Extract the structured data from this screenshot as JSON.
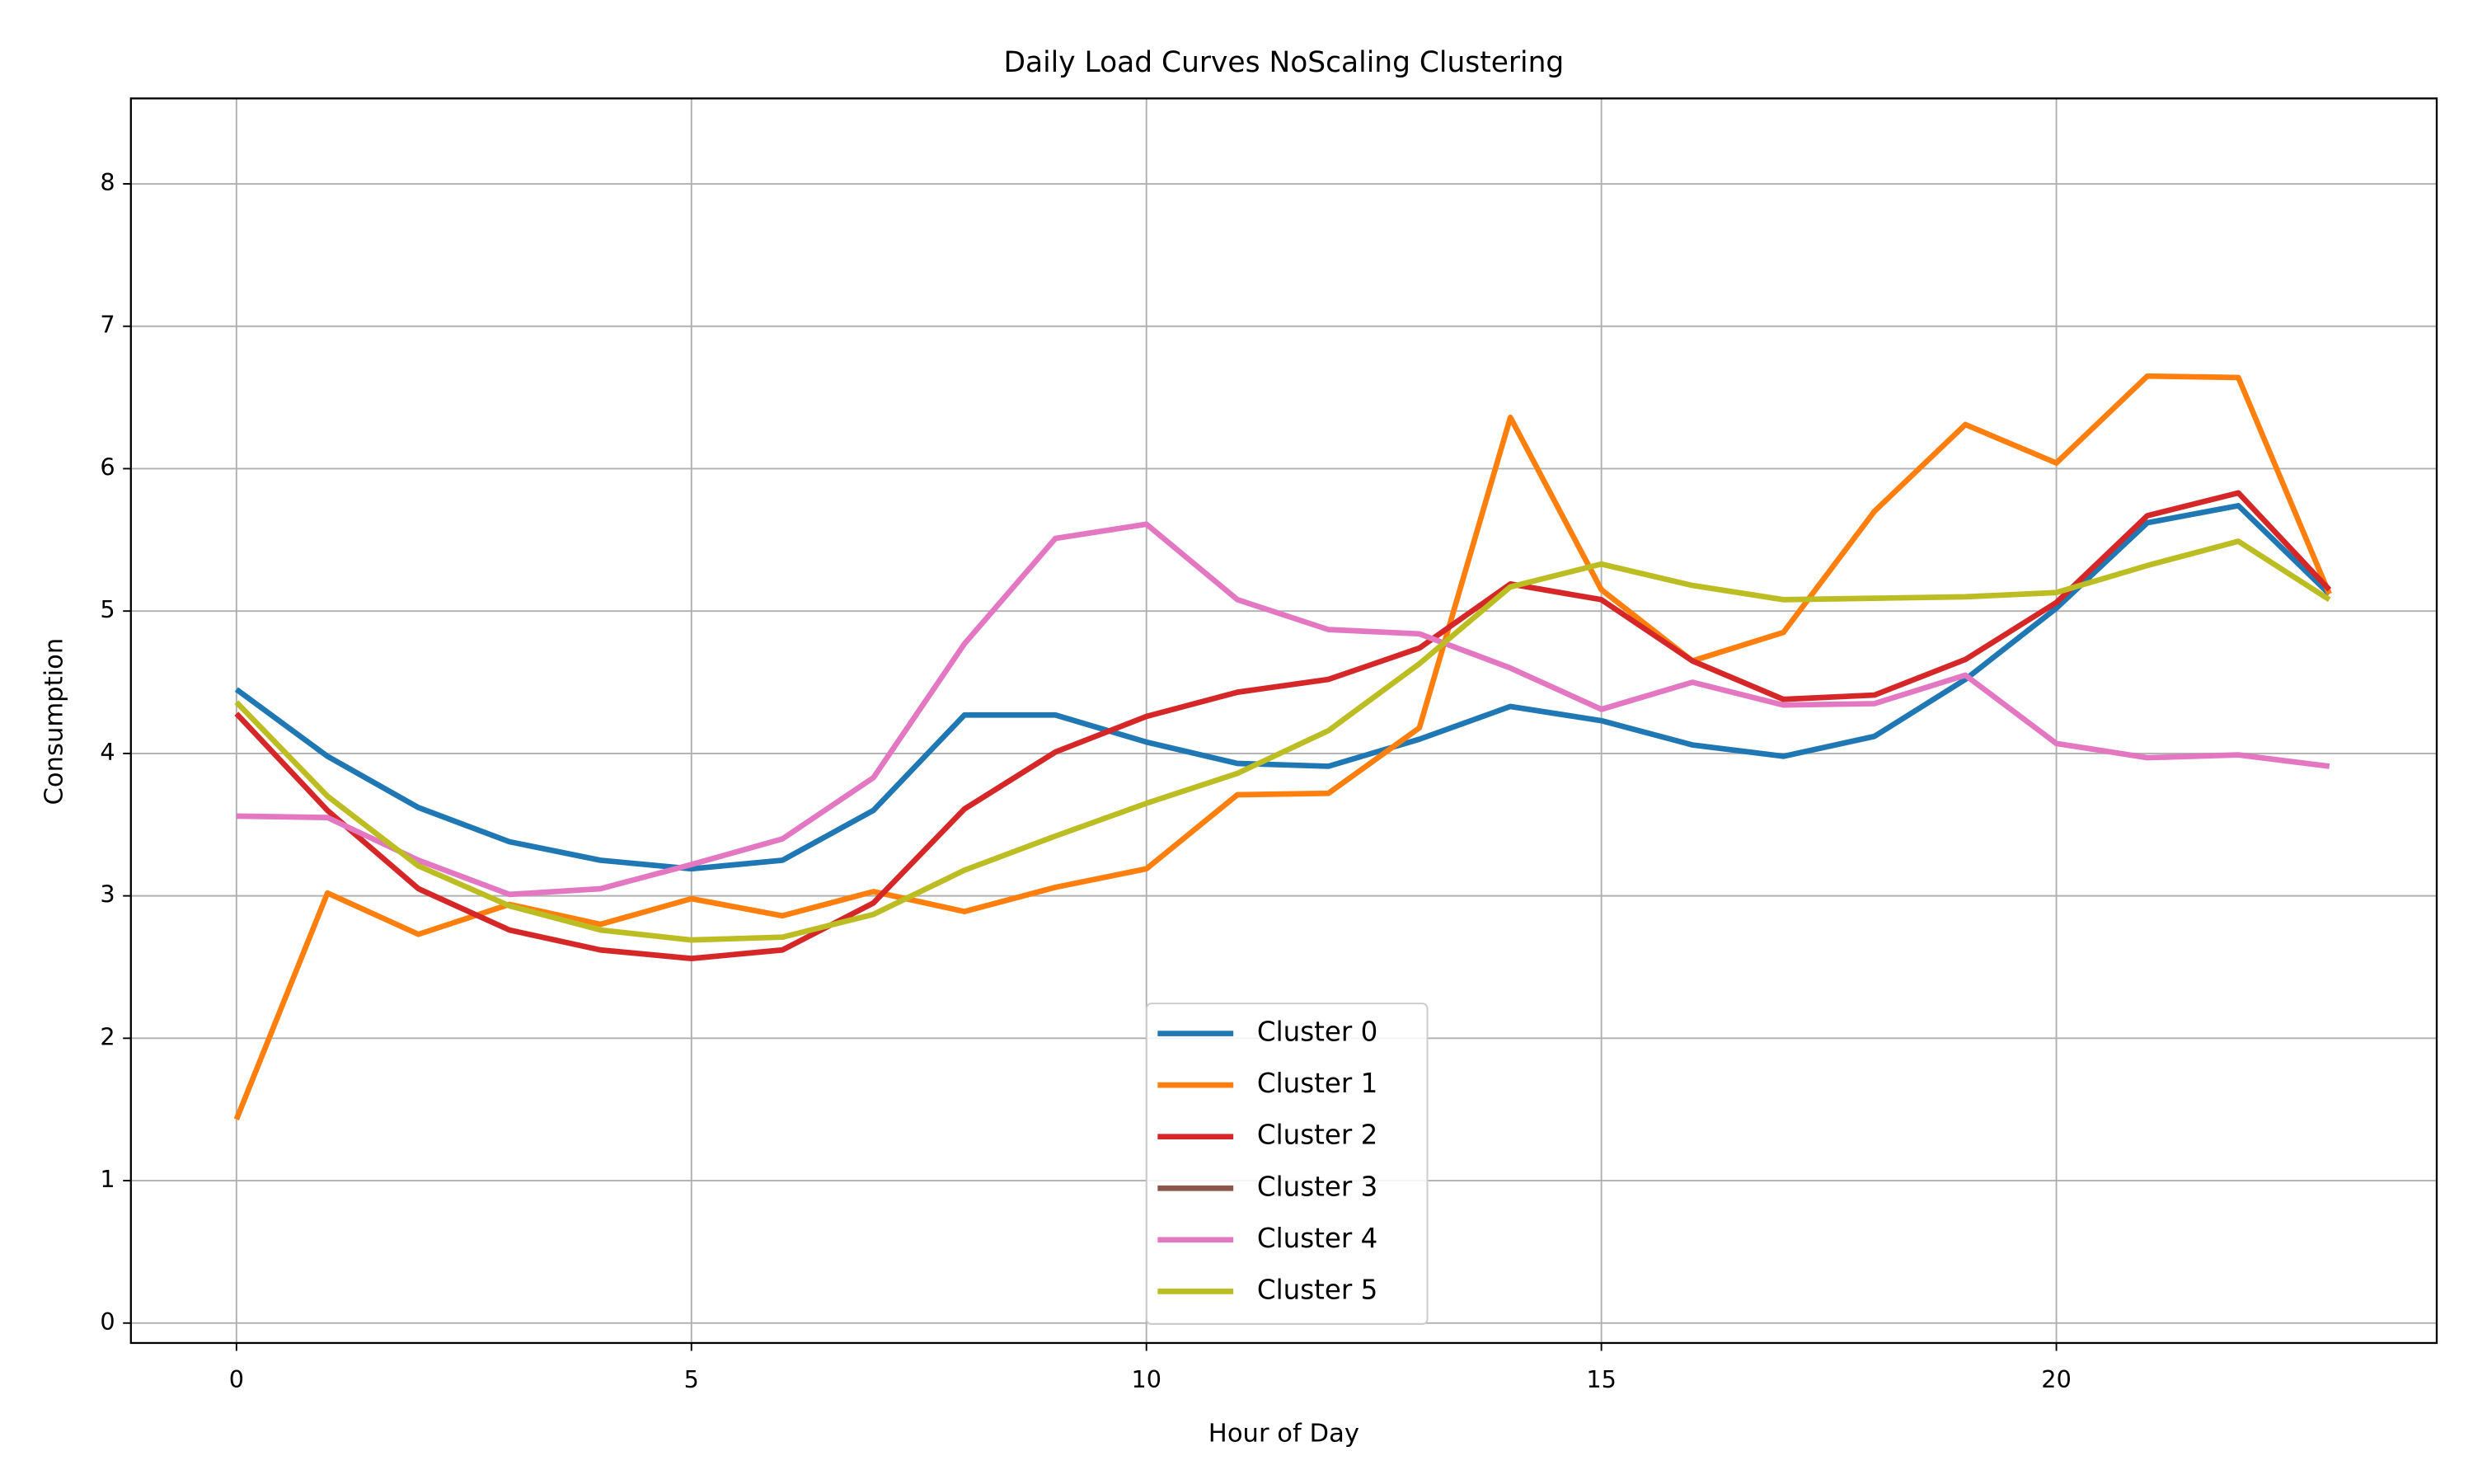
{
  "chart_data": {
    "type": "line",
    "title": "Daily Load Curves NoScaling Clustering",
    "x_label": "Hour of Day",
    "y_label": "Consumption",
    "x": [
      0,
      1,
      2,
      3,
      4,
      5,
      6,
      7,
      8,
      9,
      10,
      11,
      12,
      13,
      14,
      15,
      16,
      17,
      18,
      19,
      20,
      21,
      22,
      23
    ],
    "series": [
      {
        "name": "Cluster 0",
        "color": "#1f77b4",
        "values": [
          4.45,
          3.98,
          3.62,
          3.38,
          3.25,
          3.19,
          3.25,
          3.6,
          4.27,
          4.27,
          4.08,
          3.93,
          3.91,
          4.1,
          4.33,
          4.23,
          4.06,
          3.98,
          4.12,
          4.52,
          5.02,
          5.62,
          5.74,
          5.12
        ]
      },
      {
        "name": "Cluster 1",
        "color": "#ff7f0e",
        "values": [
          1.43,
          3.02,
          2.73,
          2.94,
          2.8,
          2.98,
          2.86,
          3.03,
          2.89,
          3.06,
          3.19,
          3.71,
          3.72,
          4.18,
          6.36,
          5.15,
          4.65,
          4.85,
          5.7,
          6.31,
          6.04,
          6.65,
          6.64,
          5.12
        ]
      },
      {
        "name": "Cluster 2",
        "color": "#d62728",
        "values": [
          4.28,
          3.6,
          3.05,
          2.76,
          2.62,
          2.56,
          2.62,
          2.95,
          3.61,
          4.01,
          4.26,
          4.43,
          4.52,
          4.74,
          5.19,
          5.08,
          4.65,
          4.38,
          4.41,
          4.66,
          5.06,
          5.67,
          5.83,
          5.15
        ]
      },
      {
        "name": "Cluster 3",
        "color": "#8c564b",
        "values": [
          null,
          null,
          null,
          null,
          null,
          null,
          null,
          null,
          null,
          null,
          null,
          null,
          null,
          null,
          null,
          null,
          null,
          null,
          null,
          null,
          null,
          null,
          null,
          null
        ]
      },
      {
        "name": "Cluster 4",
        "color": "#e377c2",
        "values": [
          3.56,
          3.55,
          3.25,
          3.01,
          3.05,
          3.22,
          3.4,
          3.83,
          4.77,
          5.51,
          5.61,
          5.08,
          4.87,
          4.84,
          4.6,
          4.31,
          4.5,
          4.34,
          4.35,
          4.55,
          4.07,
          3.97,
          3.99,
          3.91
        ]
      },
      {
        "name": "Cluster 5",
        "color": "#bcbd22",
        "values": [
          4.36,
          3.7,
          3.21,
          2.93,
          2.76,
          2.69,
          2.71,
          2.87,
          3.18,
          3.42,
          3.65,
          3.86,
          4.16,
          4.63,
          5.17,
          5.33,
          5.18,
          5.08,
          5.09,
          5.1,
          5.13,
          5.32,
          5.49,
          5.08
        ]
      }
    ],
    "xlim": [
      -1.16,
      24.18
    ],
    "ylim": [
      -0.14,
      8.6
    ],
    "xticks": [
      0,
      5,
      10,
      15,
      20
    ],
    "yticks": [
      0,
      1,
      2,
      3,
      4,
      5,
      6,
      7,
      8
    ],
    "grid": true,
    "legend": "lower center"
  }
}
